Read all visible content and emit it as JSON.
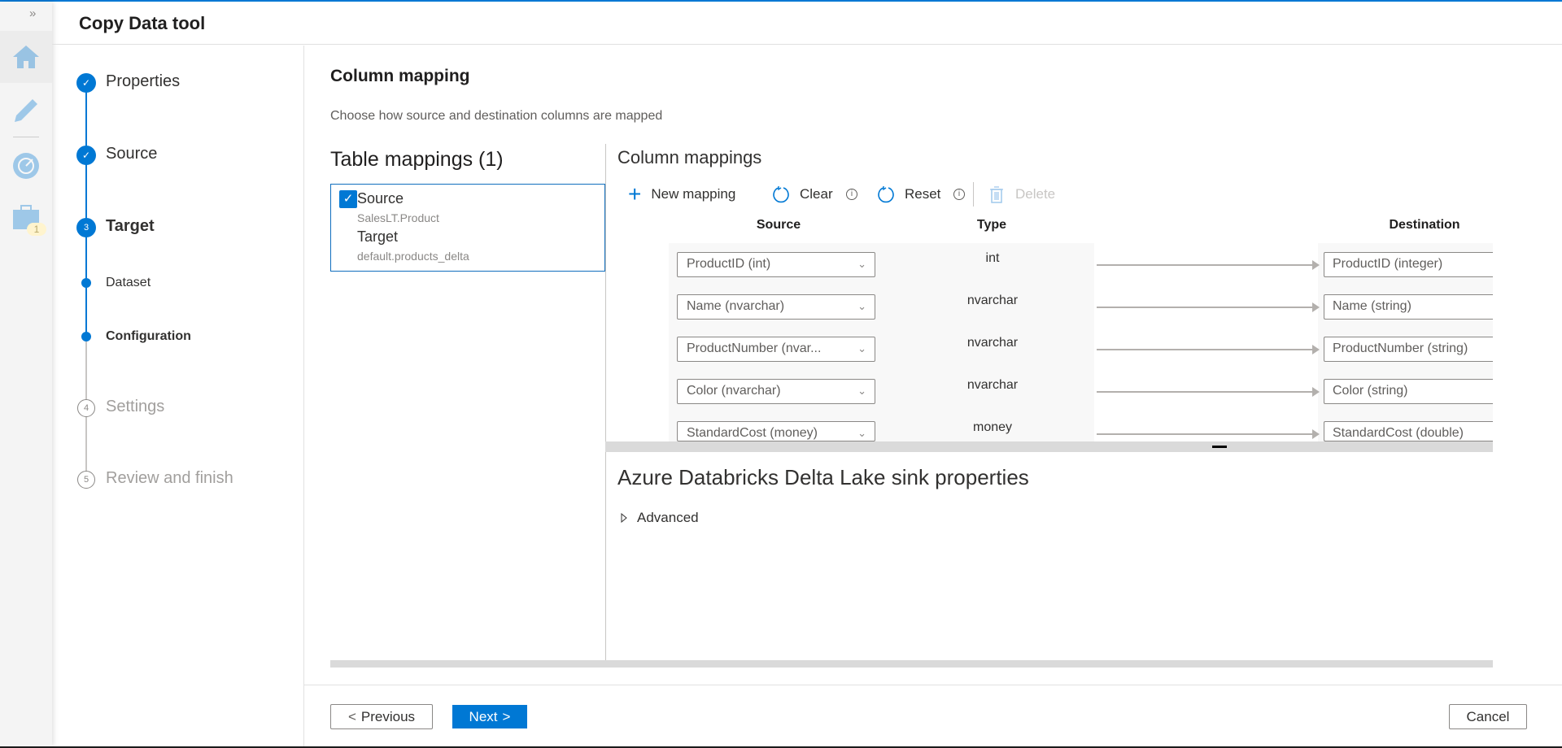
{
  "header": {
    "title": "Copy Data tool"
  },
  "rail": {
    "expand_icon": "double-chevron-right",
    "items": [
      "home-icon",
      "pencil-icon",
      "monitor-icon",
      "toolbox-icon"
    ],
    "badge": "1"
  },
  "steps": [
    {
      "label": "Properties",
      "state": "done",
      "marker": "✓"
    },
    {
      "label": "Source",
      "state": "done",
      "marker": "✓"
    },
    {
      "label": "Target",
      "state": "current",
      "marker": "3"
    },
    {
      "label": "Dataset",
      "state": "substep"
    },
    {
      "label": "Configuration",
      "state": "substep-current"
    },
    {
      "label": "Settings",
      "state": "pending",
      "marker": "4"
    },
    {
      "label": "Review and finish",
      "state": "pending",
      "marker": "5"
    }
  ],
  "main": {
    "title": "Column mapping",
    "subtitle": "Choose how source and destination columns are mapped",
    "table_mappings": {
      "title": "Table mappings (1)",
      "item": {
        "checked": true,
        "source_label": "Source",
        "source_value": "SalesLT.Product",
        "target_label": "Target",
        "target_value": "default.products_delta"
      }
    },
    "column_mappings": {
      "title": "Column mappings",
      "toolbar": {
        "new_mapping": "New mapping",
        "clear": "Clear",
        "reset": "Reset",
        "delete": "Delete"
      },
      "headers": {
        "source": "Source",
        "type": "Type",
        "destination": "Destination"
      },
      "rows": [
        {
          "source": "ProductID (int)",
          "type": "int",
          "destination": "ProductID (integer)"
        },
        {
          "source": "Name (nvarchar)",
          "type": "nvarchar",
          "destination": "Name (string)"
        },
        {
          "source": "ProductNumber (nvar...",
          "type": "nvarchar",
          "destination": "ProductNumber (string)"
        },
        {
          "source": "Color (nvarchar)",
          "type": "nvarchar",
          "destination": "Color (string)"
        },
        {
          "source": "StandardCost (money)",
          "type": "money",
          "destination": "StandardCost (double)"
        }
      ]
    },
    "sink": {
      "title": "Azure Databricks Delta Lake sink properties",
      "advanced": "Advanced"
    }
  },
  "footer": {
    "previous": "Previous",
    "next": "Next",
    "cancel": "Cancel"
  },
  "colors": {
    "accent": "#0078d4"
  }
}
